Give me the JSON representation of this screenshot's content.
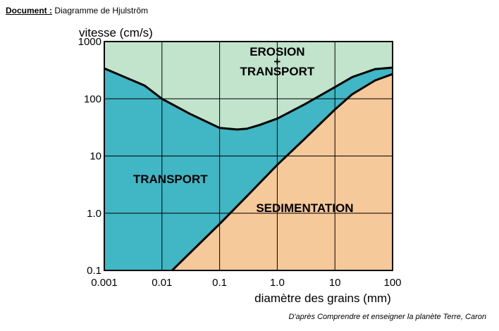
{
  "header": {
    "label": "Document :",
    "title": "Diagramme de Hjulstrôm"
  },
  "credit": "D'après Comprendre et enseigner la planète Terre, Caron",
  "colors": {
    "erosion": "#c2e3cc",
    "transport": "#41b6c4",
    "sedimentation": "#f6c99a",
    "curve": "#000000",
    "grid": "#000000"
  },
  "chart_data": {
    "type": "area",
    "title": "",
    "xlabel": "diamètre des grains (mm)",
    "ylabel": "vitesse (cm/s)",
    "xscale": "log",
    "yscale": "log",
    "xlim": [
      0.001,
      100
    ],
    "ylim": [
      0.1,
      1000
    ],
    "grid": true,
    "xticks": [
      {
        "value": 0.001,
        "label": "0.001"
      },
      {
        "value": 0.01,
        "label": "0.01"
      },
      {
        "value": 0.1,
        "label": "0.1"
      },
      {
        "value": 1,
        "label": "1.0"
      },
      {
        "value": 10,
        "label": "10"
      },
      {
        "value": 100,
        "label": "100"
      }
    ],
    "yticks": [
      {
        "value": 0.1,
        "label": "0.1"
      },
      {
        "value": 1,
        "label": "1.0"
      },
      {
        "value": 10,
        "label": "10"
      },
      {
        "value": 100,
        "label": "100"
      },
      {
        "value": 1000,
        "label": "1000"
      }
    ],
    "series": [
      {
        "values": [
          [
            0.001,
            340
          ],
          [
            0.005,
            170
          ],
          [
            0.01,
            100
          ],
          [
            0.03,
            55
          ],
          [
            0.1,
            31
          ],
          [
            0.2,
            29
          ],
          [
            0.3,
            30
          ],
          [
            0.5,
            35
          ],
          [
            1,
            45
          ],
          [
            3,
            80
          ],
          [
            10,
            160
          ],
          [
            20,
            240
          ],
          [
            50,
            330
          ],
          [
            100,
            350
          ]
        ]
      },
      {
        "values": [
          [
            0.015,
            0.1
          ],
          [
            0.1,
            0.65
          ],
          [
            0.3,
            2
          ],
          [
            1,
            7
          ],
          [
            3,
            20
          ],
          [
            10,
            65
          ],
          [
            20,
            120
          ],
          [
            50,
            210
          ],
          [
            100,
            270
          ]
        ]
      }
    ],
    "zones": [
      {
        "label_lines": [
          "EROSION",
          "+",
          "TRANSPORT"
        ],
        "x": 1,
        "y": 450
      },
      {
        "label_lines": [
          "TRANSPORT"
        ],
        "x": 0.014,
        "y": 4
      },
      {
        "label_lines": [
          "SEDIMENTATION"
        ],
        "x": 3,
        "y": 1.25
      }
    ]
  }
}
